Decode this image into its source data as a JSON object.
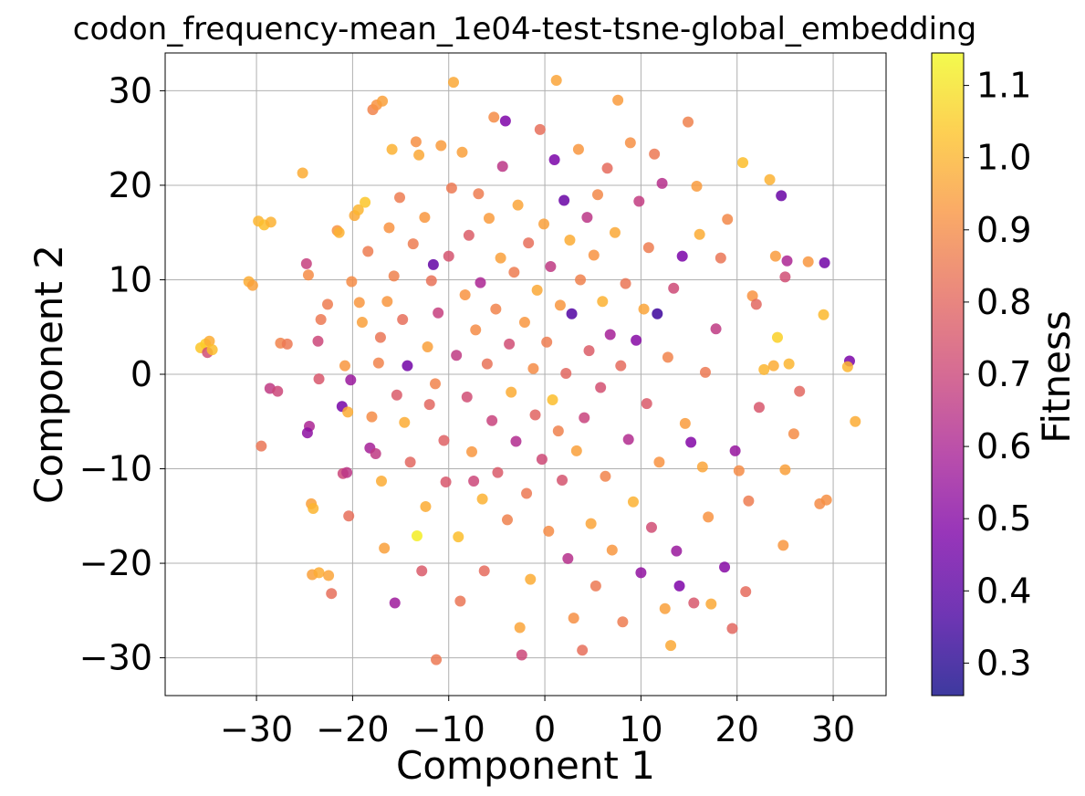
{
  "chart_data": {
    "type": "scatter",
    "title": "codon_frequency-mean_1e04-test-tsne-global_embedding",
    "xlabel": "Component 1",
    "ylabel": "Component 2",
    "xlim": [
      -39.5,
      35.5
    ],
    "ylim": [
      -34,
      34
    ],
    "xticks": [
      -30,
      -20,
      -10,
      0,
      10,
      20,
      30
    ],
    "yticks": [
      -30,
      -20,
      -10,
      0,
      10,
      20,
      30
    ],
    "xtick_labels": [
      "−30",
      "−20",
      "−10",
      "0",
      "10",
      "20",
      "30"
    ],
    "ytick_labels": [
      "−30",
      "−20",
      "−10",
      "0",
      "10",
      "20",
      "30"
    ],
    "grid": true,
    "colormap": "plasma",
    "alpha": 0.85,
    "colorbar": {
      "label": "Fitness",
      "range": [
        0.255,
        1.145
      ],
      "ticks": [
        0.3,
        0.4,
        0.5,
        0.6,
        0.7,
        0.8,
        0.9,
        1.0,
        1.1
      ],
      "tick_labels": [
        "0.3",
        "0.4",
        "0.5",
        "0.6",
        "0.7",
        "0.8",
        "0.9",
        "1.0",
        "1.1"
      ]
    },
    "series": [
      {
        "points": [
          [
            -35.8,
            2.8,
            1.04
          ],
          [
            -35.3,
            3.2,
            1.05
          ],
          [
            -34.9,
            3.5,
            0.98
          ],
          [
            -35.1,
            2.3,
            0.72
          ],
          [
            -34.6,
            2.6,
            1.02
          ],
          [
            -30.8,
            9.8,
            0.98
          ],
          [
            -30.4,
            9.4,
            0.95
          ],
          [
            -29.8,
            16.2,
            1.0
          ],
          [
            -29.2,
            15.8,
            1.02
          ],
          [
            -28.5,
            16.1,
            0.99
          ],
          [
            -28.6,
            -1.5,
            0.66
          ],
          [
            -27.8,
            -1.8,
            0.7
          ],
          [
            -27.5,
            3.3,
            0.88
          ],
          [
            -26.8,
            3.2,
            0.85
          ],
          [
            -29.5,
            -7.6,
            0.84
          ],
          [
            -25.2,
            21.3,
            0.98
          ],
          [
            -24.8,
            11.7,
            0.68
          ],
          [
            -24.6,
            10.5,
            0.9
          ],
          [
            -24.5,
            -5.5,
            0.6
          ],
          [
            -24.7,
            -6.2,
            0.52
          ],
          [
            -24.3,
            -13.7,
            0.95
          ],
          [
            -24.1,
            -14.2,
            1.0
          ],
          [
            -23.6,
            3.5,
            0.7
          ],
          [
            -23.3,
            5.8,
            0.85
          ],
          [
            -23.5,
            -0.5,
            0.75
          ],
          [
            -24.2,
            -21.2,
            0.95
          ],
          [
            -23.5,
            -21.0,
            0.98
          ],
          [
            -22.5,
            -21.3,
            0.96
          ],
          [
            -22.2,
            -23.2,
            0.82
          ],
          [
            -22.6,
            7.4,
            0.86
          ],
          [
            -21.6,
            15.2,
            0.92
          ],
          [
            -21.4,
            15.0,
            0.99
          ],
          [
            -21.1,
            -3.4,
            0.46
          ],
          [
            -20.8,
            0.9,
            0.93
          ],
          [
            -20.5,
            -4.0,
            0.98
          ],
          [
            -20.2,
            -0.6,
            0.55
          ],
          [
            -21.0,
            -10.5,
            0.7
          ],
          [
            -20.6,
            -10.4,
            0.65
          ],
          [
            -20.4,
            -15.0,
            0.82
          ],
          [
            -20.1,
            9.8,
            0.9
          ],
          [
            -19.8,
            16.8,
            0.97
          ],
          [
            -19.4,
            17.4,
            1.0
          ],
          [
            -19.3,
            7.6,
            0.93
          ],
          [
            -19.0,
            5.5,
            0.95
          ],
          [
            -18.7,
            18.2,
            1.04
          ],
          [
            -18.4,
            13.0,
            0.86
          ],
          [
            -18.0,
            -4.5,
            0.9
          ],
          [
            -18.2,
            -7.8,
            0.58
          ],
          [
            -17.6,
            -8.4,
            0.66
          ],
          [
            -17.9,
            28.0,
            0.88
          ],
          [
            -17.5,
            28.5,
            0.92
          ],
          [
            -16.9,
            28.9,
            0.95
          ],
          [
            -17.3,
            1.2,
            0.88
          ],
          [
            -17.1,
            3.9,
            0.84
          ],
          [
            -17.0,
            -11.3,
            0.98
          ],
          [
            -16.7,
            -18.4,
            0.95
          ],
          [
            -16.4,
            7.7,
            0.93
          ],
          [
            -16.2,
            15.5,
            0.92
          ],
          [
            -15.9,
            23.8,
            0.99
          ],
          [
            -15.7,
            10.4,
            0.87
          ],
          [
            -15.4,
            -2.2,
            0.76
          ],
          [
            -15.6,
            -24.2,
            0.56
          ],
          [
            -15.1,
            18.7,
            0.86
          ],
          [
            -14.8,
            5.8,
            0.82
          ],
          [
            -14.6,
            -5.1,
            0.98
          ],
          [
            -14.3,
            0.9,
            0.45
          ],
          [
            -14.0,
            -9.3,
            0.8
          ],
          [
            -13.7,
            13.8,
            0.86
          ],
          [
            -13.4,
            24.6,
            0.91
          ],
          [
            -13.1,
            23.2,
            0.97
          ],
          [
            -13.3,
            -17.1,
            1.12
          ],
          [
            -12.8,
            -20.8,
            0.76
          ],
          [
            -12.5,
            16.6,
            0.93
          ],
          [
            -12.2,
            2.9,
            0.95
          ],
          [
            -12.0,
            -3.2,
            0.8
          ],
          [
            -12.4,
            -14.0,
            0.98
          ],
          [
            -11.8,
            9.9,
            0.83
          ],
          [
            -11.6,
            11.6,
            0.42
          ],
          [
            -11.4,
            -1.0,
            0.88
          ],
          [
            -11.1,
            6.5,
            0.68
          ],
          [
            -11.3,
            -30.2,
            0.85
          ],
          [
            -10.8,
            24.2,
            0.94
          ],
          [
            -10.5,
            -7.0,
            0.78
          ],
          [
            -10.3,
            -11.4,
            0.75
          ],
          [
            -10.0,
            12.5,
            0.74
          ],
          [
            -9.7,
            19.7,
            0.85
          ],
          [
            -9.5,
            30.9,
            0.97
          ],
          [
            -9.2,
            2.0,
            0.66
          ],
          [
            -9.0,
            -17.2,
            1.02
          ],
          [
            -8.8,
            -24.0,
            0.84
          ],
          [
            -8.6,
            23.5,
            0.95
          ],
          [
            -8.3,
            8.4,
            0.92
          ],
          [
            -8.1,
            -2.4,
            0.72
          ],
          [
            -7.9,
            14.7,
            0.77
          ],
          [
            -7.6,
            -8.2,
            0.93
          ],
          [
            -7.4,
            -11.3,
            0.7
          ],
          [
            -7.2,
            4.7,
            0.9
          ],
          [
            -6.9,
            19.1,
            0.86
          ],
          [
            -6.7,
            9.7,
            0.6
          ],
          [
            -6.5,
            -13.2,
            0.99
          ],
          [
            -6.3,
            -20.8,
            0.81
          ],
          [
            -6.0,
            1.1,
            0.83
          ],
          [
            -5.8,
            16.5,
            0.94
          ],
          [
            -5.5,
            -4.9,
            0.69
          ],
          [
            -5.3,
            27.2,
            0.9
          ],
          [
            -5.1,
            6.9,
            0.88
          ],
          [
            -4.9,
            -10.4,
            0.76
          ],
          [
            -4.6,
            12.3,
            0.95
          ],
          [
            -4.4,
            22.0,
            0.65
          ],
          [
            -4.1,
            26.8,
            0.48
          ],
          [
            -3.9,
            -15.4,
            0.87
          ],
          [
            -3.7,
            3.2,
            0.72
          ],
          [
            -3.5,
            -1.9,
            0.98
          ],
          [
            -3.2,
            10.8,
            0.86
          ],
          [
            -3.0,
            -7.1,
            0.62
          ],
          [
            -2.8,
            17.9,
            0.96
          ],
          [
            -2.6,
            -26.8,
            0.96
          ],
          [
            -2.4,
            -29.7,
            0.7
          ],
          [
            -2.1,
            5.5,
            0.93
          ],
          [
            -1.9,
            -12.6,
            0.85
          ],
          [
            -1.7,
            13.9,
            0.82
          ],
          [
            -1.5,
            -21.7,
            0.98
          ],
          [
            -1.2,
            0.6,
            0.9
          ],
          [
            -1.0,
            -4.3,
            0.79
          ],
          [
            -0.8,
            8.9,
            0.97
          ],
          [
            -0.5,
            25.9,
            0.82
          ],
          [
            -0.3,
            -9.0,
            0.71
          ],
          [
            -0.1,
            15.9,
            0.95
          ],
          [
            0.2,
            3.4,
            0.86
          ],
          [
            0.4,
            -16.6,
            0.9
          ],
          [
            0.6,
            11.4,
            0.66
          ],
          [
            0.8,
            -2.7,
            1.02
          ],
          [
            1.0,
            22.7,
            0.47
          ],
          [
            1.2,
            31.1,
            0.96
          ],
          [
            1.4,
            -6.0,
            0.87
          ],
          [
            1.6,
            7.3,
            0.93
          ],
          [
            1.8,
            -11.2,
            0.74
          ],
          [
            2.0,
            18.4,
            0.43
          ],
          [
            2.2,
            0.1,
            0.8
          ],
          [
            2.4,
            -19.5,
            0.63
          ],
          [
            2.6,
            14.2,
            0.98
          ],
          [
            2.8,
            6.4,
            0.38
          ],
          [
            3.0,
            -25.8,
            0.91
          ],
          [
            3.3,
            -8.1,
            0.95
          ],
          [
            3.5,
            23.8,
            0.93
          ],
          [
            3.7,
            10.0,
            0.87
          ],
          [
            3.9,
            -29.2,
            0.82
          ],
          [
            4.1,
            -4.6,
            0.69
          ],
          [
            4.4,
            16.6,
            0.65
          ],
          [
            4.6,
            2.5,
            0.77
          ],
          [
            4.8,
            -15.8,
            0.96
          ],
          [
            5.1,
            12.6,
            0.92
          ],
          [
            5.3,
            -22.4,
            0.85
          ],
          [
            5.5,
            19.0,
            0.89
          ],
          [
            5.8,
            -1.4,
            0.73
          ],
          [
            6.0,
            7.7,
            0.99
          ],
          [
            6.3,
            -10.8,
            0.88
          ],
          [
            6.5,
            21.8,
            0.81
          ],
          [
            6.8,
            4.2,
            0.58
          ],
          [
            7.0,
            -18.6,
            0.93
          ],
          [
            7.3,
            15.0,
            0.97
          ],
          [
            7.6,
            29.0,
            0.94
          ],
          [
            7.9,
            0.9,
            0.81
          ],
          [
            8.1,
            -26.2,
            0.86
          ],
          [
            8.4,
            9.6,
            0.84
          ],
          [
            8.7,
            -6.9,
            0.62
          ],
          [
            8.9,
            24.5,
            0.91
          ],
          [
            9.2,
            -13.5,
            0.99
          ],
          [
            9.5,
            3.6,
            0.5
          ],
          [
            9.8,
            18.3,
            0.67
          ],
          [
            10.0,
            -21.0,
            0.53
          ],
          [
            10.3,
            6.9,
            0.96
          ],
          [
            10.6,
            -3.1,
            0.76
          ],
          [
            10.8,
            13.4,
            0.86
          ],
          [
            11.1,
            -16.2,
            0.72
          ],
          [
            11.4,
            23.3,
            0.85
          ],
          [
            11.7,
            6.4,
            0.34
          ],
          [
            11.9,
            -9.3,
            0.92
          ],
          [
            12.2,
            20.2,
            0.63
          ],
          [
            12.5,
            -24.8,
            0.95
          ],
          [
            12.8,
            1.8,
            0.88
          ],
          [
            13.1,
            -28.7,
            0.97
          ],
          [
            13.4,
            9.1,
            0.71
          ],
          [
            13.7,
            -18.7,
            0.55
          ],
          [
            14.0,
            -22.4,
            0.48
          ],
          [
            14.3,
            12.5,
            0.47
          ],
          [
            14.6,
            -5.2,
            0.94
          ],
          [
            14.9,
            26.7,
            0.87
          ],
          [
            15.2,
            -7.2,
            0.49
          ],
          [
            15.5,
            -24.2,
            0.75
          ],
          [
            15.8,
            19.9,
            0.94
          ],
          [
            16.1,
            14.8,
            0.98
          ],
          [
            16.4,
            -9.8,
            0.96
          ],
          [
            16.7,
            0.2,
            0.85
          ],
          [
            17.0,
            -15.1,
            0.92
          ],
          [
            17.3,
            -24.3,
            0.97
          ],
          [
            17.8,
            4.8,
            0.66
          ],
          [
            18.3,
            12.3,
            0.84
          ],
          [
            18.7,
            -20.4,
            0.5
          ],
          [
            19.0,
            16.4,
            0.89
          ],
          [
            19.5,
            -26.9,
            0.8
          ],
          [
            19.8,
            -8.1,
            0.54
          ],
          [
            20.2,
            -10.2,
            0.9
          ],
          [
            20.6,
            22.4,
            1.02
          ],
          [
            20.9,
            -23.0,
            0.81
          ],
          [
            21.2,
            -13.4,
            0.86
          ],
          [
            21.6,
            8.3,
            0.92
          ],
          [
            22.0,
            7.4,
            0.8
          ],
          [
            22.3,
            -3.5,
            0.75
          ],
          [
            22.8,
            0.5,
            1.0
          ],
          [
            23.4,
            20.6,
            0.99
          ],
          [
            23.8,
            0.9,
            0.98
          ],
          [
            24.0,
            12.5,
            0.94
          ],
          [
            24.2,
            3.9,
            1.06
          ],
          [
            24.6,
            18.9,
            0.43
          ],
          [
            24.8,
            -18.1,
            0.93
          ],
          [
            25.0,
            -10.1,
            0.95
          ],
          [
            25.2,
            12.0,
            0.6
          ],
          [
            25.0,
            10.3,
            0.72
          ],
          [
            25.4,
            1.1,
            1.0
          ],
          [
            25.9,
            -6.3,
            0.9
          ],
          [
            26.5,
            -1.8,
            0.8
          ],
          [
            27.4,
            11.9,
            0.93
          ],
          [
            28.6,
            -13.7,
            0.9
          ],
          [
            29.0,
            6.3,
            1.01
          ],
          [
            29.1,
            11.8,
            0.45
          ],
          [
            29.3,
            -13.3,
            0.91
          ],
          [
            31.7,
            1.4,
            0.47
          ],
          [
            31.5,
            0.8,
            1.0
          ],
          [
            32.3,
            -5.0,
            0.98
          ]
        ]
      }
    ]
  }
}
